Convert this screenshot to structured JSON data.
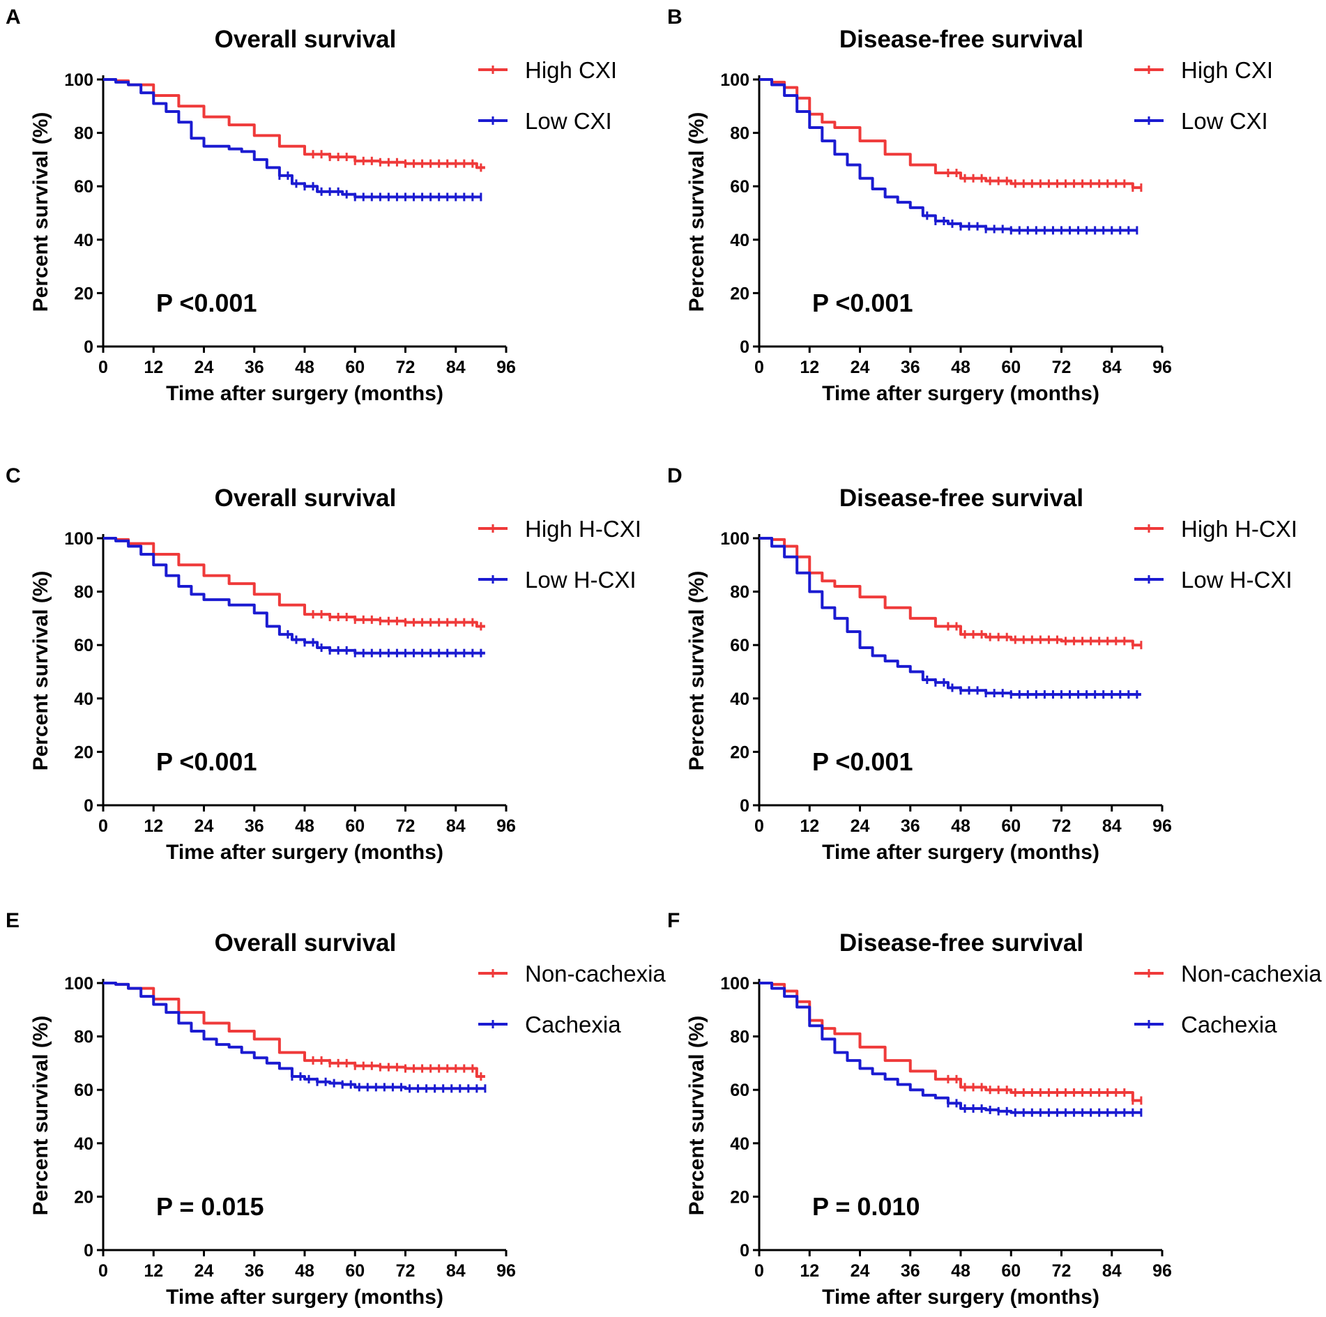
{
  "figure": {
    "panel_count": 6
  },
  "colors": {
    "high": "#ef3a3a",
    "low": "#1b1bd1",
    "axis": "#000000"
  },
  "chart_data": [
    {
      "panel": "A",
      "type": "line",
      "title": "Overall survival",
      "xlabel": "Time after surgery (months)",
      "ylabel": "Percent survival (%)",
      "xlim": [
        0,
        96
      ],
      "ylim": [
        0,
        100
      ],
      "xticks": [
        "0",
        "12",
        "24",
        "36",
        "48",
        "60",
        "72",
        "84",
        "96"
      ],
      "yticks": [
        "0",
        "20",
        "40",
        "60",
        "80",
        "100"
      ],
      "pvalue": "P <0.001",
      "series": [
        {
          "name": "High CXI",
          "color": "#ef3a3a",
          "x": [
            0,
            3,
            6,
            12,
            18,
            24,
            30,
            36,
            42,
            48,
            54,
            60,
            66,
            72,
            84,
            89,
            91
          ],
          "values": [
            100,
            99.5,
            98,
            94,
            90,
            86,
            83,
            79,
            75,
            72,
            71,
            69.5,
            69,
            68.5,
            68.5,
            67,
            67
          ],
          "censor_from": 50
        },
        {
          "name": "Low CXI",
          "color": "#1b1bd1",
          "x": [
            0,
            3,
            6,
            9,
            12,
            15,
            18,
            21,
            24,
            30,
            33,
            36,
            39,
            42,
            45,
            48,
            51,
            54,
            57,
            60,
            72,
            84,
            90
          ],
          "values": [
            100,
            99,
            98,
            95,
            91,
            88,
            84,
            78,
            75,
            74,
            73,
            70,
            67,
            64,
            61,
            60,
            58,
            58,
            57,
            56,
            56,
            56,
            56
          ],
          "censor_from": 42
        }
      ]
    },
    {
      "panel": "B",
      "type": "line",
      "title": "Disease-free survival",
      "xlabel": "Time after surgery (months)",
      "ylabel": "Percent survival (%)",
      "xlim": [
        0,
        96
      ],
      "ylim": [
        0,
        100
      ],
      "xticks": [
        "0",
        "12",
        "24",
        "36",
        "48",
        "60",
        "72",
        "84",
        "96"
      ],
      "yticks": [
        "0",
        "20",
        "40",
        "60",
        "80",
        "100"
      ],
      "pvalue": "P <0.001",
      "series": [
        {
          "name": "High CXI",
          "color": "#ef3a3a",
          "x": [
            0,
            3,
            6,
            9,
            12,
            15,
            18,
            24,
            30,
            36,
            42,
            48,
            54,
            60,
            72,
            84,
            89,
            91
          ],
          "values": [
            100,
            99,
            97,
            93,
            87,
            84,
            82,
            77,
            72,
            68,
            65,
            63,
            62,
            61,
            61,
            61,
            59.5,
            59.5
          ],
          "censor_from": 45
        },
        {
          "name": "Low CXI",
          "color": "#1b1bd1",
          "x": [
            0,
            3,
            6,
            9,
            12,
            15,
            18,
            21,
            24,
            27,
            30,
            33,
            36,
            39,
            42,
            45,
            48,
            51,
            54,
            57,
            60,
            72,
            84,
            90
          ],
          "values": [
            100,
            98,
            94,
            88,
            82,
            77,
            72,
            68,
            63,
            59,
            56,
            54,
            52,
            49,
            47,
            46,
            45,
            45,
            44,
            44,
            43.5,
            43.5,
            43.5,
            43.5
          ],
          "censor_from": 40
        }
      ]
    },
    {
      "panel": "C",
      "type": "line",
      "title": "Overall survival",
      "xlabel": "Time after surgery (months)",
      "ylabel": "Percent survival (%)",
      "xlim": [
        0,
        96
      ],
      "ylim": [
        0,
        100
      ],
      "xticks": [
        "0",
        "12",
        "24",
        "36",
        "48",
        "60",
        "72",
        "84",
        "96"
      ],
      "yticks": [
        "0",
        "20",
        "40",
        "60",
        "80",
        "100"
      ],
      "pvalue": "P <0.001",
      "series": [
        {
          "name": "High H-CXI",
          "color": "#ef3a3a",
          "x": [
            0,
            3,
            6,
            12,
            18,
            24,
            30,
            36,
            42,
            48,
            54,
            60,
            66,
            72,
            84,
            89,
            91
          ],
          "values": [
            100,
            99.5,
            98,
            94,
            90,
            86,
            83,
            79,
            75,
            71.5,
            70.5,
            69.5,
            69,
            68.5,
            68.5,
            67,
            67
          ],
          "censor_from": 50
        },
        {
          "name": "Low H-CXI",
          "color": "#1b1bd1",
          "x": [
            0,
            3,
            6,
            9,
            12,
            15,
            18,
            21,
            24,
            30,
            33,
            36,
            39,
            42,
            45,
            48,
            51,
            54,
            57,
            60,
            72,
            84,
            91
          ],
          "values": [
            100,
            99,
            97,
            94,
            90,
            86,
            82,
            79,
            77,
            75,
            75,
            72,
            67,
            64,
            62,
            61,
            59,
            58,
            58,
            57,
            57,
            57,
            57
          ],
          "censor_from": 44
        }
      ]
    },
    {
      "panel": "D",
      "type": "line",
      "title": "Disease-free survival",
      "xlabel": "Time after surgery (months)",
      "ylabel": "Percent survival (%)",
      "xlim": [
        0,
        96
      ],
      "ylim": [
        0,
        100
      ],
      "xticks": [
        "0",
        "12",
        "24",
        "36",
        "48",
        "60",
        "72",
        "84",
        "96"
      ],
      "yticks": [
        "0",
        "20",
        "40",
        "60",
        "80",
        "100"
      ],
      "pvalue": "P <0.001",
      "series": [
        {
          "name": "High H-CXI",
          "color": "#ef3a3a",
          "x": [
            0,
            3,
            6,
            9,
            12,
            15,
            18,
            24,
            30,
            36,
            42,
            48,
            54,
            60,
            72,
            84,
            89,
            91
          ],
          "values": [
            100,
            99.5,
            97,
            93,
            87,
            84,
            82,
            78,
            74,
            70,
            67,
            64,
            63,
            62,
            61.5,
            61.5,
            60,
            60
          ],
          "censor_from": 45
        },
        {
          "name": "Low H-CXI",
          "color": "#1b1bd1",
          "x": [
            0,
            3,
            6,
            9,
            12,
            15,
            18,
            21,
            24,
            27,
            30,
            33,
            36,
            39,
            42,
            45,
            48,
            51,
            54,
            57,
            60,
            72,
            84,
            91
          ],
          "values": [
            100,
            97,
            93,
            87,
            80,
            74,
            70,
            65,
            59,
            56,
            54,
            52,
            50,
            47,
            46,
            44,
            43,
            43,
            42,
            42,
            41.5,
            41.5,
            41.5,
            41.5
          ],
          "censor_from": 40
        }
      ]
    },
    {
      "panel": "E",
      "type": "line",
      "title": "Overall survival",
      "xlabel": "Time after surgery (months)",
      "ylabel": "Percent survival (%)",
      "xlim": [
        0,
        96
      ],
      "ylim": [
        0,
        100
      ],
      "xticks": [
        "0",
        "12",
        "24",
        "36",
        "48",
        "60",
        "72",
        "84",
        "96"
      ],
      "yticks": [
        "0",
        "20",
        "40",
        "60",
        "80",
        "100"
      ],
      "pvalue": "P = 0.015",
      "series": [
        {
          "name": "Non-cachexia",
          "color": "#ef3a3a",
          "x": [
            0,
            3,
            6,
            12,
            18,
            24,
            30,
            36,
            42,
            48,
            54,
            60,
            66,
            72,
            84,
            88,
            89,
            91
          ],
          "values": [
            100,
            99.5,
            98,
            94,
            89,
            85,
            82,
            79,
            74,
            71,
            70,
            69,
            68.5,
            68,
            68,
            68,
            65,
            65
          ],
          "censor_from": 50
        },
        {
          "name": "Cachexia",
          "color": "#1b1bd1",
          "x": [
            0,
            3,
            6,
            9,
            12,
            15,
            18,
            21,
            24,
            27,
            30,
            33,
            36,
            39,
            42,
            45,
            48,
            51,
            54,
            57,
            60,
            72,
            84,
            91
          ],
          "values": [
            100,
            99.5,
            98,
            95,
            92,
            89,
            85,
            82,
            79,
            77,
            76,
            74,
            72,
            70,
            68,
            65,
            64,
            63,
            62.5,
            62,
            61,
            60.5,
            60.5,
            60.5
          ],
          "censor_from": 45
        }
      ]
    },
    {
      "panel": "F",
      "type": "line",
      "title": "Disease-free survival",
      "xlabel": "Time after surgery (months)",
      "ylabel": "Percent survival (%)",
      "xlim": [
        0,
        96
      ],
      "ylim": [
        0,
        100
      ],
      "xticks": [
        "0",
        "12",
        "24",
        "36",
        "48",
        "60",
        "72",
        "84",
        "96"
      ],
      "yticks": [
        "0",
        "20",
        "40",
        "60",
        "80",
        "100"
      ],
      "pvalue": "P = 0.010",
      "series": [
        {
          "name": "Non-cachexia",
          "color": "#ef3a3a",
          "x": [
            0,
            3,
            6,
            9,
            12,
            15,
            18,
            24,
            30,
            36,
            42,
            48,
            54,
            60,
            72,
            84,
            88,
            89,
            91
          ],
          "values": [
            100,
            99.5,
            97,
            93,
            86,
            83,
            81,
            76,
            71,
            67,
            64,
            61,
            60,
            59,
            59,
            59,
            59,
            56,
            56
          ],
          "censor_from": 45
        },
        {
          "name": "Cachexia",
          "color": "#1b1bd1",
          "x": [
            0,
            3,
            6,
            9,
            12,
            15,
            18,
            21,
            24,
            27,
            30,
            33,
            36,
            39,
            42,
            45,
            48,
            51,
            54,
            57,
            60,
            72,
            84,
            91
          ],
          "values": [
            100,
            98,
            95,
            91,
            84,
            79,
            74,
            71,
            68,
            66,
            64,
            62,
            60,
            58,
            57,
            55,
            53,
            53,
            52.5,
            52,
            51.5,
            51.5,
            51.5,
            51.5
          ],
          "censor_from": 45
        }
      ]
    }
  ]
}
